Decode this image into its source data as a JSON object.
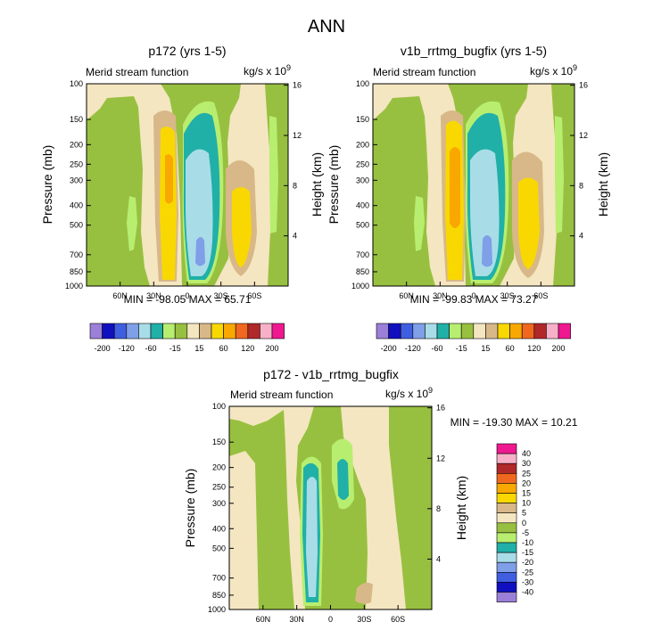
{
  "figure_title": "ANN",
  "chart_data": [
    {
      "type": "contour",
      "title": "p172 (yrs 1-5)",
      "subtitle_left": "Merid stream function",
      "units": "kg/s x 10",
      "units_exp": "9",
      "ylabel": "Pressure (mb)",
      "ylabel_right": "Height (km)",
      "y_ticks": [
        "100",
        "150",
        "200",
        "250",
        "300",
        "400",
        "500",
        "700",
        "850",
        "1000"
      ],
      "y_right_ticks": [
        "16",
        "12",
        "8",
        "4"
      ],
      "x_ticks": [
        "60N",
        "30N",
        "0",
        "30S",
        "60S"
      ],
      "stats": "MIN = -98.05   MAX =  65.71",
      "levels": [
        -200,
        -160,
        -120,
        -80,
        -60,
        -40,
        -15,
        -5,
        5,
        15,
        40,
        60,
        80,
        120,
        160,
        200
      ],
      "colorbar_labels": [
        "-200",
        "-120",
        "-60",
        "-15",
        "15",
        "60",
        "120",
        "200"
      ]
    },
    {
      "type": "contour",
      "title": "v1b_rrtmg_bugfix (yrs 1-5)",
      "subtitle_left": "Merid stream function",
      "units": "kg/s x 10",
      "units_exp": "9",
      "ylabel": "Pressure (mb)",
      "ylabel_right": "Height (km)",
      "y_ticks": [
        "100",
        "150",
        "200",
        "250",
        "300",
        "400",
        "500",
        "700",
        "850",
        "1000"
      ],
      "y_right_ticks": [
        "16",
        "12",
        "8",
        "4"
      ],
      "x_ticks": [
        "60N",
        "30N",
        "0",
        "30S",
        "60S"
      ],
      "stats": "MIN = -99.83   MAX =  73.27",
      "levels": [
        -200,
        -160,
        -120,
        -80,
        -60,
        -40,
        -15,
        -5,
        5,
        15,
        40,
        60,
        80,
        120,
        160,
        200
      ],
      "colorbar_labels": [
        "-200",
        "-120",
        "-60",
        "-15",
        "15",
        "60",
        "120",
        "200"
      ]
    },
    {
      "type": "contour",
      "title": "p172 - v1b_rrtmg_bugfix",
      "subtitle_left": "Merid stream function",
      "units": "kg/s x 10",
      "units_exp": "9",
      "ylabel": "Pressure (mb)",
      "ylabel_right": "Height (km)",
      "y_ticks": [
        "100",
        "150",
        "200",
        "250",
        "300",
        "400",
        "500",
        "700",
        "850",
        "1000"
      ],
      "y_right_ticks": [
        "16",
        "12",
        "8",
        "4"
      ],
      "x_ticks": [
        "60N",
        "30N",
        "0",
        "30S",
        "60S"
      ],
      "stats": "MIN = -19.30   MAX =  10.21",
      "colorbar_labels": [
        "40",
        "30",
        "25",
        "20",
        "15",
        "10",
        "5",
        "0",
        "-5",
        "-10",
        "-15",
        "-20",
        "-25",
        "-30",
        "-40"
      ]
    }
  ],
  "colors": {
    "main_scale": [
      "#9b7fd8",
      "#1010c0",
      "#3f5fe0",
      "#7f9fe8",
      "#a8dde8",
      "#20b0a8",
      "#b8ee70",
      "#98c040",
      "#f4e6c0",
      "#d8b888",
      "#f8d800",
      "#f8a800",
      "#f06820",
      "#b02828",
      "#f8b0c8",
      "#f01890"
    ],
    "diff_scale": [
      "#f01890",
      "#f8b0c8",
      "#b02828",
      "#f06820",
      "#f8a800",
      "#f8d800",
      "#d8b888",
      "#f4e6c0",
      "#98c040",
      "#b8ee70",
      "#20b0a8",
      "#a8dde8",
      "#7f9fe8",
      "#3f5fe0",
      "#1010c0",
      "#9b7fd8"
    ]
  }
}
